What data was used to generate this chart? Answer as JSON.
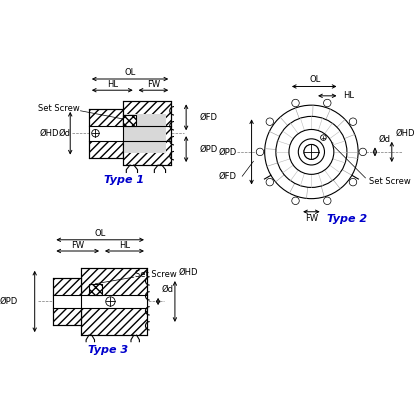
{
  "bg_color": "#ffffff",
  "line_color": "#000000",
  "hatch_color": "#555555",
  "dim_color": "#000000",
  "type_color": "#0000cc",
  "type1_label": "Type 1",
  "type2_label": "Type 2",
  "type3_label": "Type 3",
  "labels": {
    "OL": "OL",
    "HL": "HL",
    "FW": "FW",
    "OFD": "ØFD",
    "OPD": "ØPD",
    "OHD": "ØHD",
    "Od": "Ød",
    "SetScrew": "Set Screw"
  },
  "fig_width": 4.16,
  "fig_height": 4.16,
  "dpi": 100
}
